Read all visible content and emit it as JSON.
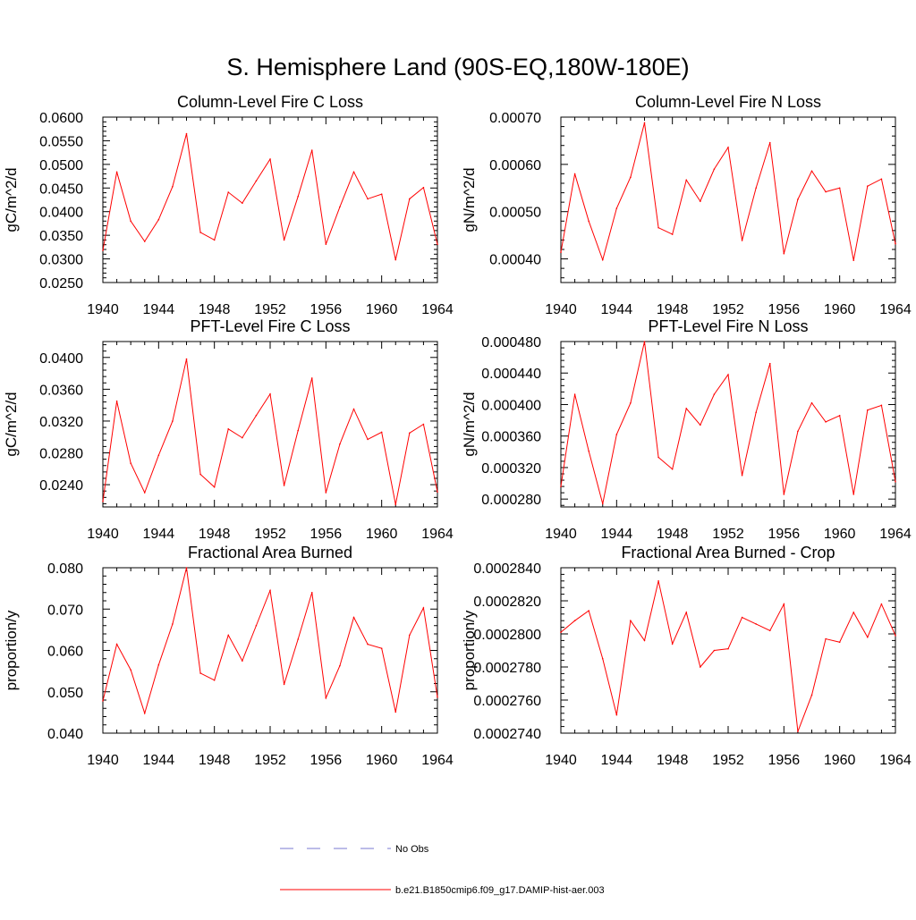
{
  "page": {
    "title": "S. Hemisphere Land (90S-EQ,180W-180E)"
  },
  "colors": {
    "series": "#ff0000",
    "obs": "#7a7ad0",
    "axis": "#000000"
  },
  "legend": {
    "items": [
      {
        "label": "No Obs",
        "style": "dashed",
        "color": "#7a7ad0"
      },
      {
        "label": "b.e21.B1850cmip6.f09_g17.DAMIP-hist-aer.003",
        "style": "solid",
        "color": "#ff0000"
      }
    ]
  },
  "chart_data": [
    {
      "type": "line",
      "title": "Column-Level Fire C Loss",
      "xlabel": "",
      "ylabel": "gC/m^2/d",
      "xlim": [
        1940,
        1964
      ],
      "ylim": [
        0.025,
        0.06
      ],
      "xticks": [
        "1940",
        "1944",
        "1948",
        "1952",
        "1956",
        "1960",
        "1964"
      ],
      "yticks": [
        "0.0250",
        "0.0300",
        "0.0350",
        "0.0400",
        "0.0450",
        "0.0500",
        "0.0550",
        "0.0600"
      ],
      "x": [
        1940,
        1941,
        1942,
        1943,
        1944,
        1945,
        1946,
        1947,
        1948,
        1949,
        1950,
        1951,
        1952,
        1953,
        1954,
        1955,
        1956,
        1957,
        1958,
        1959,
        1960,
        1961,
        1962,
        1963,
        1964
      ],
      "series": [
        {
          "name": "b.e21.B1850cmip6.f09_g17.DAMIP-hist-aer.003",
          "values": [
            0.0318,
            0.0484,
            0.038,
            0.0337,
            0.0383,
            0.0453,
            0.0565,
            0.0356,
            0.034,
            0.0441,
            0.0418,
            0.0465,
            0.0511,
            0.034,
            0.0432,
            0.053,
            0.0331,
            0.041,
            0.0484,
            0.0427,
            0.0437,
            0.0298,
            0.0427,
            0.0451,
            0.0331
          ]
        }
      ]
    },
    {
      "type": "line",
      "title": "Column-Level Fire N Loss",
      "xlabel": "",
      "ylabel": "gN/m^2/d",
      "xlim": [
        1940,
        1964
      ],
      "ylim": [
        0.00035,
        0.0007
      ],
      "xticks": [
        "1940",
        "1944",
        "1948",
        "1952",
        "1956",
        "1960",
        "1964"
      ],
      "yticks": [
        "0.00040",
        "0.00050",
        "0.00060",
        "0.00070"
      ],
      "x": [
        1940,
        1941,
        1942,
        1943,
        1944,
        1945,
        1946,
        1947,
        1948,
        1949,
        1950,
        1951,
        1952,
        1953,
        1954,
        1955,
        1956,
        1957,
        1958,
        1959,
        1960,
        1961,
        1962,
        1963,
        1964
      ],
      "series": [
        {
          "name": "b.e21.B1850cmip6.f09_g17.DAMIP-hist-aer.003",
          "values": [
            0.000414,
            0.00058,
            0.00048,
            0.000398,
            0.000507,
            0.000573,
            0.000688,
            0.000466,
            0.000452,
            0.000567,
            0.000522,
            0.00059,
            0.000636,
            0.000439,
            0.00055,
            0.000646,
            0.000411,
            0.000526,
            0.000586,
            0.000542,
            0.00055,
            0.000397,
            0.000554,
            0.000569,
            0.000432
          ]
        }
      ]
    },
    {
      "type": "line",
      "title": "PFT-Level Fire C Loss",
      "xlabel": "",
      "ylabel": "gC/m^2/d",
      "xlim": [
        1940,
        1964
      ],
      "ylim": [
        0.0212,
        0.042
      ],
      "xticks": [
        "1940",
        "1944",
        "1948",
        "1952",
        "1956",
        "1960",
        "1964"
      ],
      "yticks": [
        "0.0240",
        "0.0280",
        "0.0320",
        "0.0360",
        "0.0400"
      ],
      "x": [
        1940,
        1941,
        1942,
        1943,
        1944,
        1945,
        1946,
        1947,
        1948,
        1949,
        1950,
        1951,
        1952,
        1953,
        1954,
        1955,
        1956,
        1957,
        1958,
        1959,
        1960,
        1961,
        1962,
        1963,
        1964
      ],
      "series": [
        {
          "name": "b.e21.B1850cmip6.f09_g17.DAMIP-hist-aer.003",
          "values": [
            0.0219,
            0.0345,
            0.0267,
            0.023,
            0.0277,
            0.032,
            0.0398,
            0.0253,
            0.0237,
            0.031,
            0.0299,
            0.0327,
            0.0354,
            0.0239,
            0.0308,
            0.0374,
            0.023,
            0.0291,
            0.0335,
            0.0297,
            0.0306,
            0.0215,
            0.0305,
            0.0316,
            0.0231
          ]
        }
      ]
    },
    {
      "type": "line",
      "title": "PFT-Level Fire N Loss",
      "xlabel": "",
      "ylabel": "gN/m^2/d",
      "xlim": [
        1940,
        1964
      ],
      "ylim": [
        0.00027,
        0.00048
      ],
      "xticks": [
        "1940",
        "1944",
        "1948",
        "1952",
        "1956",
        "1960",
        "1964"
      ],
      "yticks": [
        "0.000280",
        "0.000320",
        "0.000360",
        "0.000400",
        "0.000440",
        "0.000480"
      ],
      "x": [
        1940,
        1941,
        1942,
        1943,
        1944,
        1945,
        1946,
        1947,
        1948,
        1949,
        1950,
        1951,
        1952,
        1953,
        1954,
        1955,
        1956,
        1957,
        1958,
        1959,
        1960,
        1961,
        1962,
        1963,
        1964
      ],
      "series": [
        {
          "name": "b.e21.B1850cmip6.f09_g17.DAMIP-hist-aer.003",
          "values": [
            0.000296,
            0.000413,
            0.000341,
            0.000274,
            0.000362,
            0.000402,
            0.00048,
            0.000333,
            0.000318,
            0.000395,
            0.000374,
            0.000413,
            0.000438,
            0.00031,
            0.00039,
            0.000452,
            0.000286,
            0.000366,
            0.000402,
            0.000378,
            0.000386,
            0.000286,
            0.000393,
            0.000399,
            0.000302
          ]
        }
      ]
    },
    {
      "type": "line",
      "title": "Fractional Area Burned",
      "xlabel": "",
      "ylabel": "proportion/y",
      "xlim": [
        1940,
        1964
      ],
      "ylim": [
        0.04,
        0.08
      ],
      "xticks": [
        "1940",
        "1944",
        "1948",
        "1952",
        "1956",
        "1960",
        "1964"
      ],
      "yticks": [
        "0.040",
        "0.050",
        "0.060",
        "0.070",
        "0.080"
      ],
      "x": [
        1940,
        1941,
        1942,
        1943,
        1944,
        1945,
        1946,
        1947,
        1948,
        1949,
        1950,
        1951,
        1952,
        1953,
        1954,
        1955,
        1956,
        1957,
        1958,
        1959,
        1960,
        1961,
        1962,
        1963,
        1964
      ],
      "series": [
        {
          "name": "b.e21.B1850cmip6.f09_g17.DAMIP-hist-aer.003",
          "values": [
            0.0478,
            0.0615,
            0.0553,
            0.0448,
            0.0565,
            0.0664,
            0.08,
            0.0545,
            0.0528,
            0.0637,
            0.0575,
            0.066,
            0.0745,
            0.0518,
            0.0627,
            0.074,
            0.0485,
            0.0563,
            0.068,
            0.0615,
            0.0605,
            0.0451,
            0.0637,
            0.0703,
            0.0487
          ]
        }
      ]
    },
    {
      "type": "line",
      "title": "Fractional Area Burned - Crop",
      "xlabel": "",
      "ylabel": "proportion/y",
      "xlim": [
        1940,
        1964
      ],
      "ylim": [
        0.000274,
        0.000284
      ],
      "xticks": [
        "1940",
        "1944",
        "1948",
        "1952",
        "1956",
        "1960",
        "1964"
      ],
      "yticks": [
        "0.0002740",
        "0.0002760",
        "0.0002780",
        "0.0002800",
        "0.0002820",
        "0.0002840"
      ],
      "x": [
        1940,
        1941,
        1942,
        1943,
        1944,
        1945,
        1946,
        1947,
        1948,
        1949,
        1950,
        1951,
        1952,
        1953,
        1954,
        1955,
        1956,
        1957,
        1958,
        1959,
        1960,
        1961,
        1962,
        1963,
        1964
      ],
      "series": [
        {
          "name": "b.e21.B1850cmip6.f09_g17.DAMIP-hist-aer.003",
          "values": [
            0.0002801,
            0.0002808,
            0.0002814,
            0.0002785,
            0.0002751,
            0.0002808,
            0.0002796,
            0.0002832,
            0.0002794,
            0.0002813,
            0.000278,
            0.000279,
            0.0002791,
            0.000281,
            0.0002806,
            0.0002802,
            0.0002818,
            0.0002741,
            0.0002763,
            0.0002797,
            0.0002795,
            0.0002813,
            0.0002798,
            0.0002818,
            0.0002799
          ]
        }
      ]
    }
  ]
}
